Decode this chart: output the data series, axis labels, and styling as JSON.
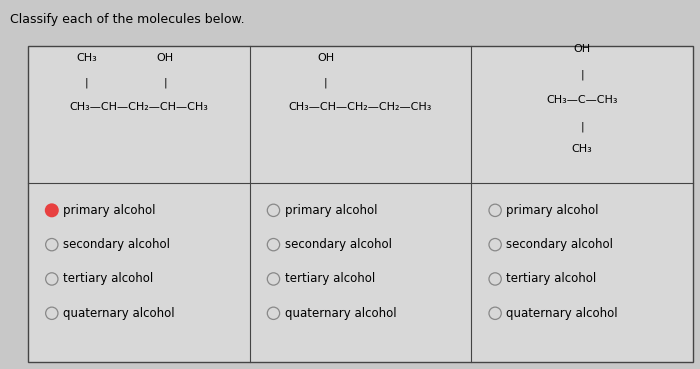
{
  "title": "Classify each of the molecules below.",
  "bg_color": "#c8c8c8",
  "table_bg": "#d8d8d8",
  "border_color": "#444444",
  "title_fontsize": 9,
  "options": [
    "primary alcohol",
    "secondary alcohol",
    "tertiary alcohol",
    "quaternary alcohol"
  ],
  "selected_col": 0,
  "selected_opt": 0,
  "selected_fill": "#e84040",
  "selected_edge": "#e84040",
  "unselected_edge": "#888888",
  "fs_mol": 8.0,
  "fs_opt": 8.5
}
